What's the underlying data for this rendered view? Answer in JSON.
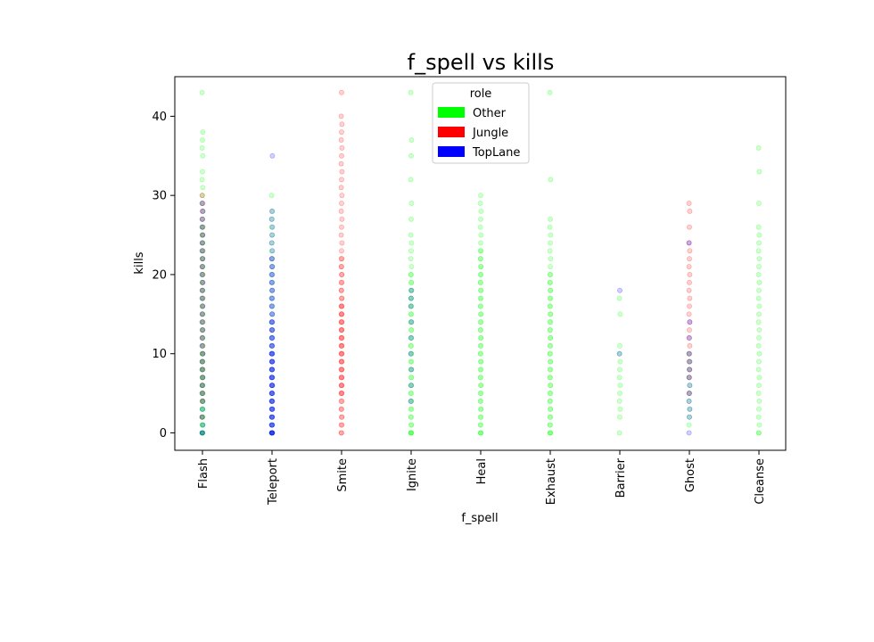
{
  "chart_data": {
    "type": "scatter",
    "title": "f_spell vs kills",
    "xlabel": "f_spell",
    "ylabel": "kills",
    "categories": [
      "Flash",
      "Teleport",
      "Smite",
      "Ignite",
      "Heal",
      "Exhaust",
      "Barrier",
      "Ghost",
      "Cleanse"
    ],
    "ylim": [
      -2.2,
      45
    ],
    "yticks": [
      0,
      10,
      20,
      30,
      40
    ],
    "grid": false,
    "legend": {
      "title": "role",
      "position": "top-center",
      "entries": [
        {
          "name": "Other",
          "color": "#00ff00"
        },
        {
          "name": "Jungle",
          "color": "#ff0000"
        },
        {
          "name": "TopLane",
          "color": "#0000ff"
        }
      ]
    },
    "series": [
      {
        "name": "Other",
        "color": "#00ff00",
        "points": {
          "Flash": [
            0,
            0,
            0,
            0,
            0,
            1,
            1,
            1,
            2,
            2,
            2,
            3,
            3,
            3,
            4,
            4,
            4,
            5,
            5,
            5,
            6,
            6,
            6,
            7,
            7,
            7,
            8,
            8,
            8,
            9,
            9,
            9,
            10,
            10,
            10,
            11,
            11,
            12,
            12,
            13,
            13,
            14,
            14,
            15,
            15,
            16,
            16,
            17,
            17,
            18,
            18,
            19,
            19,
            20,
            20,
            21,
            21,
            22,
            22,
            23,
            23,
            24,
            24,
            25,
            25,
            26,
            26,
            27,
            28,
            29,
            30,
            31,
            32,
            33,
            35,
            36,
            37,
            38,
            43
          ],
          "Teleport": [
            0,
            0,
            1,
            2,
            3,
            4,
            5,
            6,
            7,
            8,
            9,
            10,
            11,
            12,
            13,
            14,
            15,
            16,
            17,
            18,
            19,
            20,
            21,
            22,
            23,
            24,
            25,
            26,
            27,
            28,
            30
          ],
          "Ignite": [
            0,
            0,
            0,
            0,
            1,
            1,
            2,
            2,
            3,
            3,
            4,
            4,
            5,
            5,
            6,
            6,
            7,
            7,
            8,
            8,
            9,
            9,
            10,
            10,
            11,
            11,
            12,
            12,
            13,
            13,
            14,
            14,
            15,
            15,
            16,
            16,
            17,
            17,
            18,
            18,
            19,
            19,
            20,
            20,
            21,
            22,
            23,
            24,
            25,
            27,
            29,
            32,
            35,
            37,
            43
          ],
          "Heal": [
            0,
            0,
            0,
            1,
            1,
            2,
            2,
            3,
            3,
            4,
            4,
            5,
            5,
            6,
            6,
            7,
            7,
            8,
            8,
            9,
            9,
            10,
            10,
            11,
            11,
            12,
            12,
            13,
            13,
            14,
            14,
            15,
            15,
            16,
            16,
            17,
            17,
            18,
            18,
            19,
            19,
            20,
            20,
            21,
            21,
            22,
            22,
            23,
            23,
            24,
            25,
            26,
            27,
            28,
            29,
            30
          ],
          "Exhaust": [
            0,
            0,
            0,
            1,
            1,
            2,
            2,
            3,
            3,
            4,
            4,
            5,
            5,
            6,
            6,
            7,
            7,
            8,
            8,
            9,
            9,
            10,
            10,
            11,
            11,
            12,
            12,
            13,
            13,
            14,
            14,
            15,
            15,
            16,
            16,
            17,
            17,
            18,
            18,
            19,
            19,
            20,
            20,
            21,
            22,
            23,
            24,
            25,
            26,
            27,
            32,
            43
          ],
          "Barrier": [
            0,
            2,
            3,
            4,
            5,
            6,
            7,
            8,
            9,
            10,
            11,
            15,
            17
          ],
          "Ghost": [
            1,
            2,
            3,
            4,
            5,
            6,
            7,
            8,
            9,
            10
          ],
          "Cleanse": [
            0,
            0,
            1,
            2,
            3,
            4,
            5,
            6,
            7,
            8,
            9,
            10,
            11,
            12,
            13,
            14,
            15,
            16,
            17,
            18,
            19,
            20,
            21,
            22,
            23,
            24,
            25,
            26,
            29,
            33,
            36
          ]
        }
      },
      {
        "name": "Jungle",
        "color": "#ff0000",
        "points": {
          "Flash": [
            2,
            4,
            5,
            6,
            7,
            8,
            9,
            10,
            11,
            12,
            13,
            14,
            15,
            16,
            17,
            18,
            19,
            20,
            21,
            22,
            23,
            24,
            25,
            26,
            27,
            28,
            29,
            30
          ],
          "Smite": [
            0,
            0,
            1,
            1,
            2,
            2,
            3,
            3,
            4,
            4,
            5,
            5,
            5,
            6,
            6,
            6,
            7,
            7,
            7,
            8,
            8,
            8,
            9,
            9,
            9,
            10,
            10,
            10,
            11,
            11,
            11,
            12,
            12,
            12,
            13,
            13,
            13,
            14,
            14,
            14,
            15,
            15,
            15,
            16,
            16,
            16,
            17,
            17,
            18,
            18,
            19,
            19,
            20,
            20,
            21,
            21,
            22,
            22,
            23,
            24,
            25,
            26,
            27,
            28,
            29,
            30,
            31,
            32,
            33,
            34,
            35,
            36,
            37,
            38,
            39,
            40,
            43
          ],
          "Ghost": [
            5,
            7,
            8,
            9,
            10,
            11,
            12,
            13,
            14,
            15,
            16,
            17,
            18,
            19,
            20,
            21,
            22,
            23,
            24,
            26,
            28,
            29
          ]
        }
      },
      {
        "name": "TopLane",
        "color": "#0000ff",
        "points": {
          "Flash": [
            0,
            0,
            1,
            2,
            3,
            4,
            5,
            6,
            7,
            8,
            9,
            10,
            11,
            12,
            13,
            14,
            15,
            16,
            17,
            18,
            19,
            20,
            21,
            22,
            23,
            24,
            25,
            26,
            27,
            28,
            29
          ],
          "Teleport": [
            0,
            0,
            0,
            0,
            0,
            0,
            1,
            1,
            1,
            1,
            2,
            2,
            2,
            2,
            3,
            3,
            3,
            3,
            4,
            4,
            4,
            4,
            5,
            5,
            5,
            5,
            6,
            6,
            6,
            6,
            7,
            7,
            7,
            7,
            8,
            8,
            8,
            8,
            9,
            9,
            9,
            9,
            10,
            10,
            10,
            10,
            11,
            11,
            11,
            12,
            12,
            12,
            13,
            13,
            13,
            14,
            14,
            14,
            15,
            15,
            16,
            16,
            17,
            17,
            18,
            18,
            19,
            19,
            20,
            20,
            21,
            21,
            22,
            22,
            23,
            24,
            25,
            26,
            27,
            28,
            35
          ],
          "Ignite": [
            4,
            6,
            8,
            10,
            12,
            14,
            16,
            17,
            18
          ],
          "Barrier": [
            10,
            18
          ],
          "Ghost": [
            0,
            2,
            3,
            4,
            5,
            6,
            7,
            8,
            9,
            10,
            12,
            14,
            24
          ]
        }
      }
    ]
  }
}
